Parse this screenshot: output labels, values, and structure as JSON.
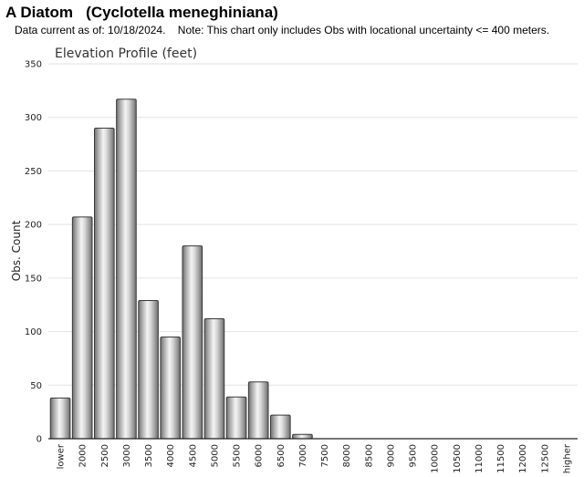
{
  "header": {
    "title": "A Diatom   (Cyclotella meneghiniana)",
    "subtitle": "Data current as of: 10/18/2024.    Note: This chart only includes Obs with locational uncertainty <= 400 meters."
  },
  "chart_data": {
    "type": "bar",
    "title": "Elevation Profile (feet)",
    "xlabel": "",
    "ylabel": "Obs. Count",
    "ylim": [
      0,
      350
    ],
    "yticks": [
      0,
      50,
      100,
      150,
      200,
      250,
      300,
      350
    ],
    "grid": true,
    "categories": [
      "lower",
      "2000",
      "2500",
      "3000",
      "3500",
      "4000",
      "4500",
      "5000",
      "5500",
      "6000",
      "6500",
      "7000",
      "7500",
      "8000",
      "8500",
      "9000",
      "9500",
      "10000",
      "10500",
      "11000",
      "11500",
      "12000",
      "12500",
      "higher"
    ],
    "values": [
      38,
      207,
      290,
      317,
      129,
      95,
      180,
      112,
      39,
      53,
      22,
      4,
      0,
      0,
      0,
      0,
      0,
      0,
      0,
      0,
      0,
      0,
      0,
      0
    ],
    "bar_color": "#b8b8b8"
  }
}
